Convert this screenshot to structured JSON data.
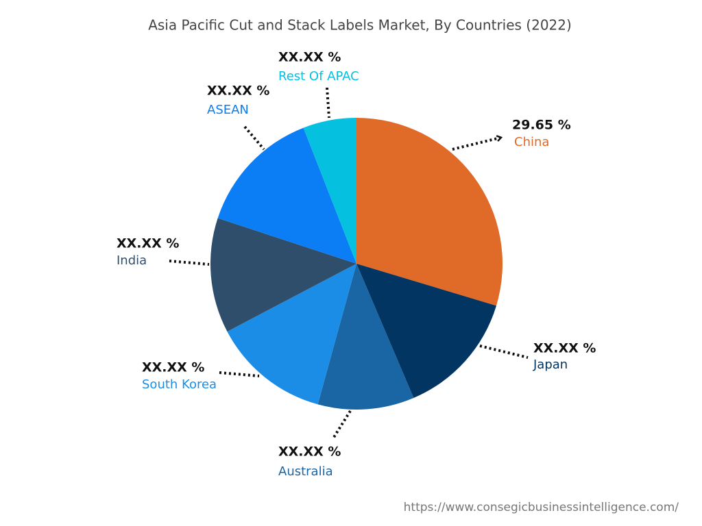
{
  "chart_data": {
    "type": "pie",
    "title": "Asia Pacific Cut and Stack Labels Market, By Countries (2022)",
    "categories": [
      "China",
      "Japan",
      "Australia",
      "South Korea",
      "India",
      "ASEAN",
      "Rest Of APAC"
    ],
    "values": [
      29.65,
      13.95,
      10.67,
      13.03,
      12.75,
      14.03,
      5.92
    ],
    "value_labels": [
      "29.65 %",
      "XX.XX %",
      "XX.XX %",
      "XX.XX %",
      "XX.XX %",
      "XX.XX %",
      "XX.XX %"
    ],
    "colors": [
      "#e06a28",
      "#033563",
      "#1a65a3",
      "#1b8de6",
      "#2e4e6b",
      "#0b7ef5",
      "#06c0e0"
    ]
  },
  "footer_url": "https://www.consegicbusinessintelligence.com/"
}
